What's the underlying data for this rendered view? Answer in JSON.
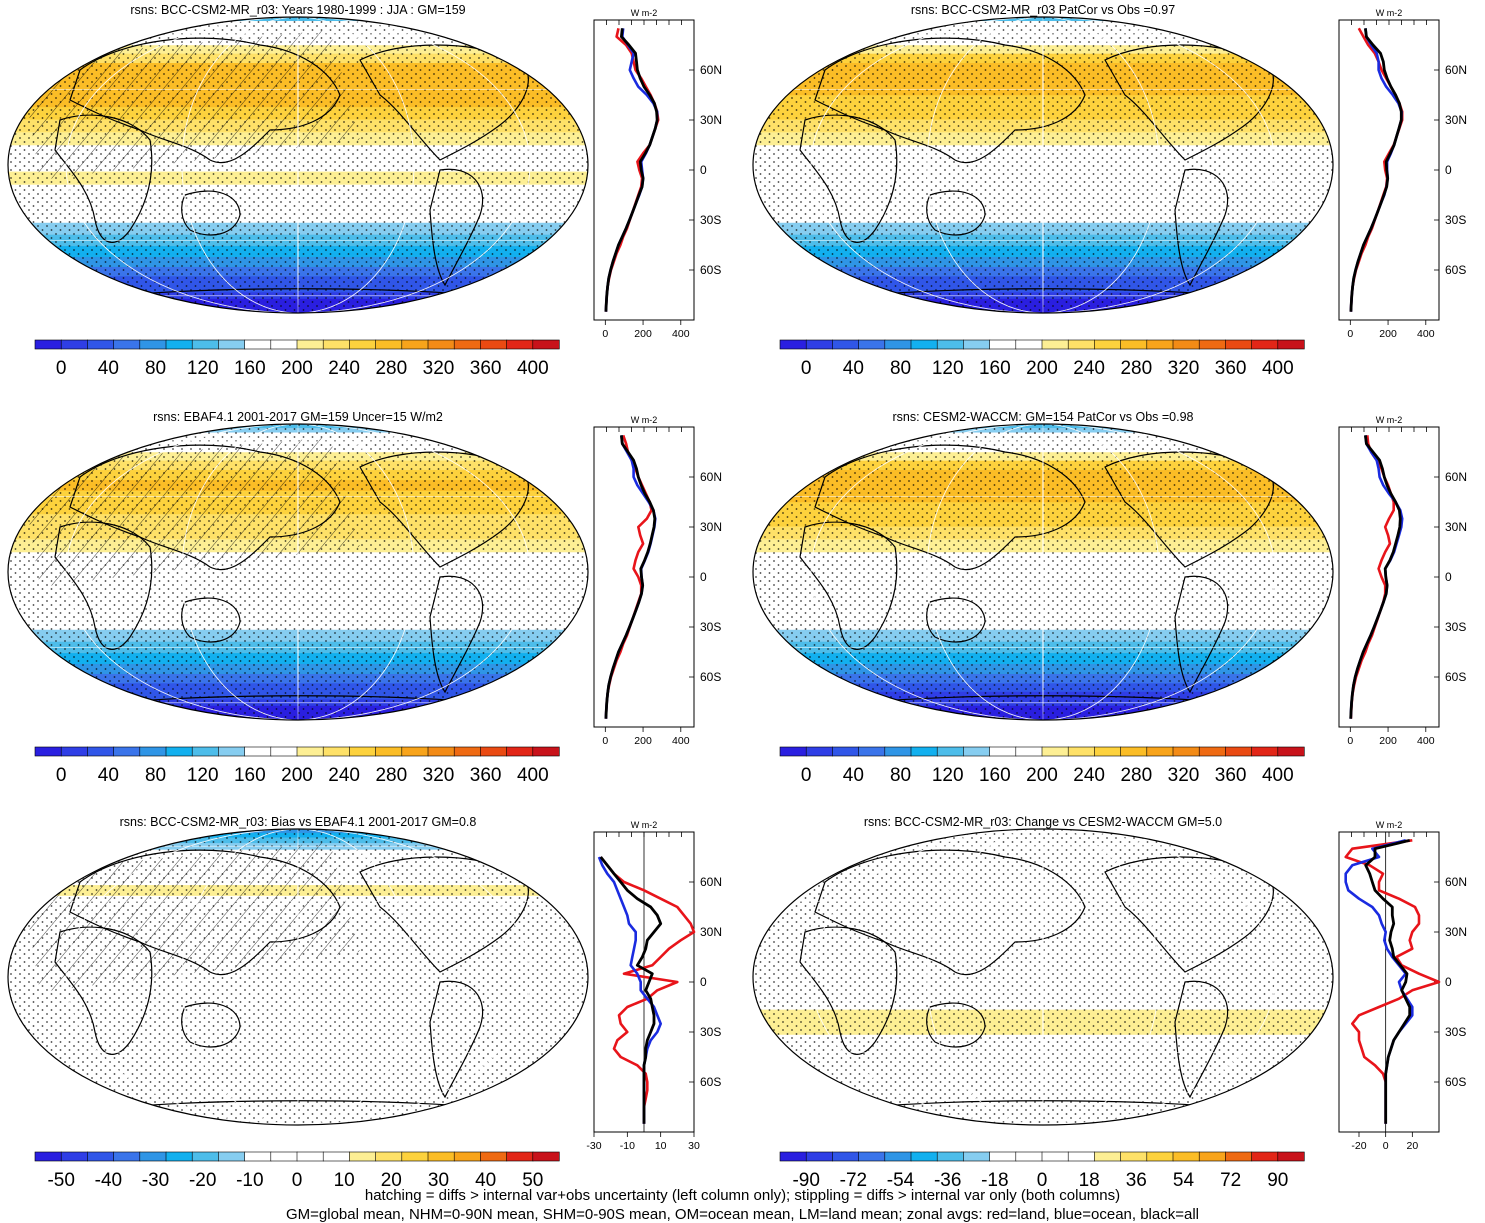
{
  "figure": {
    "footnotes": [
      "hatching = diffs > internal var+obs uncertainty (left column only); stippling = diffs > internal var only (both columns)",
      "GM=global mean, NHM=0-90N mean, SHM=0-90S mean, OM=ocean mean, LM=land mean; zonal avgs: red=land, blue=ocean, black=all"
    ],
    "colors": {
      "land": "#e8141a",
      "ocean": "#1a2be0",
      "all": "#000000"
    }
  },
  "chart_data": [
    {
      "type": "heatmap",
      "title": "rsns: BCC-CSM2-MR_r03: Years 1980-1999 : JJA : GM=159",
      "colorbar_labels": [
        "0",
        "40",
        "80",
        "120",
        "160",
        "200",
        "240",
        "280",
        "320",
        "360",
        "400"
      ],
      "profile_unit": "W m-2",
      "profile_ticks": [
        "0",
        "200",
        "400"
      ],
      "profile_xlim": [
        -60,
        470
      ],
      "lat_labels": [
        "60N",
        "30N",
        "0",
        "30S",
        "60S"
      ],
      "hatching": true,
      "stippling": true,
      "zonal_profiles": {
        "lat": [
          85,
          80,
          75,
          70,
          65,
          60,
          55,
          50,
          45,
          40,
          35,
          30,
          25,
          20,
          15,
          10,
          5,
          0,
          -5,
          -10,
          -15,
          -20,
          -25,
          -30,
          -35,
          -40,
          -45,
          -50,
          -55,
          -60,
          -65,
          -70,
          -75,
          -80,
          -85
        ],
        "land": [
          70,
          60,
          110,
          140,
          150,
          160,
          190,
          215,
          240,
          260,
          275,
          280,
          265,
          250,
          235,
          200,
          170,
          180,
          195,
          190,
          175,
          160,
          145,
          130,
          115,
          95,
          80,
          60,
          45,
          30,
          20,
          12,
          8,
          5,
          3
        ],
        "ocean": [
          95,
          90,
          120,
          150,
          140,
          130,
          150,
          175,
          220,
          255,
          275,
          275,
          265,
          250,
          235,
          215,
          190,
          195,
          200,
          195,
          180,
          162,
          145,
          128,
          110,
          90,
          70,
          55,
          40,
          28,
          18,
          12,
          8,
          5,
          3
        ],
        "all": [
          90,
          85,
          125,
          160,
          165,
          170,
          185,
          205,
          235,
          260,
          272,
          275,
          265,
          250,
          235,
          212,
          185,
          190,
          200,
          195,
          178,
          162,
          145,
          128,
          110,
          90,
          70,
          55,
          40,
          28,
          18,
          12,
          8,
          5,
          3
        ]
      }
    },
    {
      "type": "heatmap",
      "title": "rsns: BCC-CSM2-MR_r03 PatCor vs Obs =0.97",
      "colorbar_labels": [
        "0",
        "40",
        "80",
        "120",
        "160",
        "200",
        "240",
        "280",
        "320",
        "360",
        "400"
      ],
      "profile_unit": "W m-2",
      "profile_ticks": [
        "0",
        "200",
        "400"
      ],
      "profile_xlim": [
        -60,
        470
      ],
      "lat_labels": [
        "60N",
        "30N",
        "0",
        "30S",
        "60S"
      ],
      "hatching": false,
      "stippling": true,
      "zonal_profiles": {
        "lat": [
          85,
          80,
          75,
          70,
          65,
          60,
          55,
          50,
          45,
          40,
          35,
          30,
          25,
          20,
          15,
          10,
          5,
          0,
          -5,
          -10,
          -15,
          -20,
          -25,
          -30,
          -35,
          -40,
          -45,
          -50,
          -55,
          -60,
          -65,
          -70,
          -75,
          -80,
          -85
        ],
        "land": [
          45,
          70,
          95,
          130,
          150,
          165,
          190,
          215,
          240,
          260,
          275,
          275,
          260,
          245,
          230,
          205,
          180,
          185,
          195,
          190,
          175,
          160,
          145,
          130,
          115,
          95,
          80,
          60,
          45,
          30,
          20,
          12,
          8,
          5,
          3
        ],
        "ocean": [
          80,
          85,
          110,
          140,
          150,
          150,
          165,
          190,
          225,
          255,
          272,
          270,
          258,
          245,
          232,
          215,
          195,
          195,
          198,
          192,
          180,
          162,
          145,
          128,
          110,
          90,
          70,
          55,
          40,
          28,
          18,
          12,
          8,
          5,
          3
        ],
        "all": [
          80,
          85,
          120,
          160,
          175,
          180,
          195,
          215,
          240,
          260,
          270,
          270,
          258,
          245,
          232,
          212,
          190,
          193,
          198,
          193,
          178,
          162,
          145,
          128,
          110,
          90,
          70,
          55,
          40,
          28,
          18,
          12,
          8,
          5,
          3
        ]
      }
    },
    {
      "type": "heatmap",
      "title": "rsns: EBAF4.1 2001-2017 GM=159 Uncer=15 W/m2",
      "colorbar_labels": [
        "0",
        "40",
        "80",
        "120",
        "160",
        "200",
        "240",
        "280",
        "320",
        "360",
        "400"
      ],
      "profile_unit": "W m-2",
      "profile_ticks": [
        "0",
        "200",
        "400"
      ],
      "profile_xlim": [
        -60,
        470
      ],
      "lat_labels": [
        "60N",
        "30N",
        "0",
        "30S",
        "60S"
      ],
      "hatching": true,
      "stippling": true,
      "zonal_profiles": {
        "lat": [
          85,
          80,
          75,
          70,
          65,
          60,
          55,
          50,
          45,
          40,
          35,
          30,
          25,
          20,
          15,
          10,
          5,
          0,
          -5,
          -10,
          -15,
          -20,
          -25,
          -30,
          -35,
          -40,
          -45,
          -50,
          -55,
          -60,
          -65,
          -70,
          -75,
          -80,
          -85
        ],
        "land": [
          95,
          110,
          120,
          140,
          160,
          175,
          195,
          215,
          235,
          245,
          220,
          175,
          185,
          200,
          175,
          160,
          150,
          175,
          190,
          190,
          175,
          160,
          145,
          130,
          115,
          95,
          80,
          60,
          45,
          30,
          20,
          12,
          8,
          5,
          3
        ],
        "ocean": [
          85,
          90,
          115,
          140,
          150,
          150,
          170,
          200,
          230,
          255,
          265,
          260,
          250,
          240,
          228,
          210,
          190,
          192,
          198,
          192,
          178,
          162,
          145,
          128,
          110,
          90,
          70,
          55,
          40,
          28,
          18,
          12,
          8,
          5,
          3
        ],
        "all": [
          85,
          90,
          120,
          150,
          165,
          175,
          190,
          210,
          235,
          255,
          262,
          258,
          248,
          238,
          225,
          208,
          188,
          192,
          198,
          192,
          178,
          162,
          145,
          128,
          110,
          90,
          70,
          55,
          40,
          28,
          18,
          12,
          8,
          5,
          3
        ]
      }
    },
    {
      "type": "heatmap",
      "title": "rsns: CESM2-WACCM: GM=154 PatCor vs Obs =0.98",
      "colorbar_labels": [
        "0",
        "40",
        "80",
        "120",
        "160",
        "200",
        "240",
        "280",
        "320",
        "360",
        "400"
      ],
      "profile_unit": "W m-2",
      "profile_ticks": [
        "0",
        "200",
        "400"
      ],
      "profile_xlim": [
        -60,
        470
      ],
      "lat_labels": [
        "60N",
        "30N",
        "0",
        "30S",
        "60S"
      ],
      "hatching": false,
      "stippling": true,
      "zonal_profiles": {
        "lat": [
          85,
          80,
          75,
          70,
          65,
          60,
          55,
          50,
          45,
          40,
          35,
          30,
          25,
          20,
          15,
          10,
          5,
          0,
          -5,
          -10,
          -15,
          -20,
          -25,
          -30,
          -35,
          -40,
          -45,
          -50,
          -55,
          -60,
          -65,
          -70,
          -75,
          -80,
          -85
        ],
        "land": [
          90,
          95,
          110,
          140,
          165,
          180,
          200,
          215,
          230,
          230,
          205,
          185,
          200,
          210,
          185,
          165,
          150,
          165,
          185,
          185,
          175,
          160,
          145,
          130,
          115,
          95,
          80,
          60,
          45,
          30,
          20,
          12,
          8,
          5,
          3
        ],
        "ocean": [
          80,
          85,
          110,
          140,
          150,
          155,
          175,
          205,
          240,
          265,
          275,
          270,
          258,
          245,
          232,
          212,
          185,
          188,
          195,
          190,
          176,
          160,
          143,
          126,
          108,
          88,
          68,
          53,
          38,
          26,
          17,
          11,
          7,
          4,
          2
        ],
        "all": [
          80,
          85,
          120,
          155,
          170,
          180,
          195,
          215,
          240,
          260,
          265,
          262,
          252,
          240,
          228,
          210,
          185,
          188,
          195,
          190,
          176,
          160,
          143,
          126,
          108,
          88,
          68,
          53,
          38,
          26,
          17,
          11,
          7,
          4,
          2
        ]
      }
    },
    {
      "type": "heatmap",
      "title": "rsns: BCC-CSM2-MR_r03: Bias vs EBAF4.1 2001-2017 GM=0.8",
      "colorbar_labels": [
        "-50",
        "-40",
        "-30",
        "-20",
        "-10",
        "0",
        "10",
        "20",
        "30",
        "40",
        "50"
      ],
      "profile_unit": "W m-2",
      "profile_ticks": [
        "-30",
        "-10",
        "10",
        "30"
      ],
      "profile_xlim": [
        -30,
        30
      ],
      "lat_labels": [
        "60N",
        "30N",
        "0",
        "30S",
        "60S"
      ],
      "hatching": true,
      "stippling": true,
      "zonal_profiles": {
        "lat": [
          85,
          80,
          75,
          70,
          65,
          60,
          55,
          50,
          45,
          40,
          35,
          30,
          25,
          20,
          15,
          10,
          5,
          0,
          -5,
          -10,
          -15,
          -20,
          -25,
          -30,
          -35,
          -40,
          -45,
          -50,
          -55,
          -60,
          -65,
          -70,
          -75,
          -80,
          -85
        ],
        "land": [
          -28,
          null,
          -26,
          -22,
          -18,
          -12,
          0,
          10,
          20,
          24,
          28,
          30,
          22,
          15,
          10,
          5,
          -12,
          20,
          8,
          2,
          -10,
          -15,
          -14,
          -10,
          -16,
          -18,
          -14,
          -4,
          1,
          2,
          2,
          1,
          0,
          0,
          0
        ],
        "ocean": [
          -26,
          null,
          -27,
          -25,
          -22,
          -18,
          -16,
          -14,
          -12,
          -10,
          -9,
          -5,
          -5,
          -6,
          -7,
          -8,
          -4,
          -2,
          -2,
          2,
          6,
          8,
          10,
          8,
          4,
          2,
          1,
          0,
          0,
          0,
          0,
          0,
          0,
          0,
          0
        ],
        "all": [
          -24,
          null,
          -26,
          -22,
          -18,
          -14,
          -10,
          -4,
          4,
          8,
          10,
          6,
          2,
          1,
          -1,
          -4,
          5,
          3,
          1,
          4,
          5,
          6,
          6,
          4,
          2,
          1,
          1,
          0,
          0,
          0,
          0,
          0,
          0,
          0,
          0
        ]
      }
    },
    {
      "type": "heatmap",
      "title": "rsns: BCC-CSM2-MR_r03: Change vs CESM2-WACCM GM=5.0",
      "colorbar_labels": [
        "-90",
        "-72",
        "-54",
        "-36",
        "-18",
        "0",
        "18",
        "36",
        "54",
        "72",
        "90"
      ],
      "profile_unit": "W m-2",
      "profile_ticks": [
        "-20",
        "0",
        "20"
      ],
      "profile_xlim": [
        -35,
        40
      ],
      "lat_labels": [
        "60N",
        "30N",
        "0",
        "30S",
        "60S"
      ],
      "hatching": false,
      "stippling": true,
      "zonal_profiles": {
        "lat": [
          85,
          80,
          75,
          70,
          65,
          60,
          55,
          50,
          45,
          40,
          35,
          30,
          25,
          20,
          15,
          10,
          5,
          0,
          -5,
          -10,
          -15,
          -20,
          -25,
          -30,
          -35,
          -40,
          -45,
          -50,
          -55,
          -60,
          -65,
          -70,
          -75,
          -80,
          -85
        ],
        "land": [
          20,
          -25,
          -30,
          -12,
          -2,
          -5,
          -5,
          10,
          22,
          25,
          25,
          20,
          18,
          20,
          8,
          12,
          25,
          40,
          20,
          10,
          -5,
          -20,
          -25,
          -20,
          -20,
          -18,
          -16,
          -8,
          -2,
          0,
          0,
          0,
          0,
          0,
          0
        ],
        "ocean": [
          15,
          -10,
          -5,
          -25,
          -30,
          -30,
          -28,
          -20,
          -10,
          -5,
          -3,
          0,
          -1,
          1,
          5,
          10,
          15,
          10,
          12,
          16,
          20,
          20,
          15,
          10,
          6,
          4,
          2,
          1,
          0,
          0,
          0,
          0,
          0,
          0,
          0
        ],
        "all": [
          18,
          -8,
          -8,
          -15,
          -12,
          -10,
          -8,
          -2,
          5,
          5,
          6,
          4,
          3,
          5,
          6,
          11,
          16,
          15,
          12,
          15,
          18,
          18,
          14,
          10,
          6,
          4,
          2,
          1,
          0,
          0,
          0,
          0,
          0,
          0,
          0
        ]
      }
    }
  ]
}
